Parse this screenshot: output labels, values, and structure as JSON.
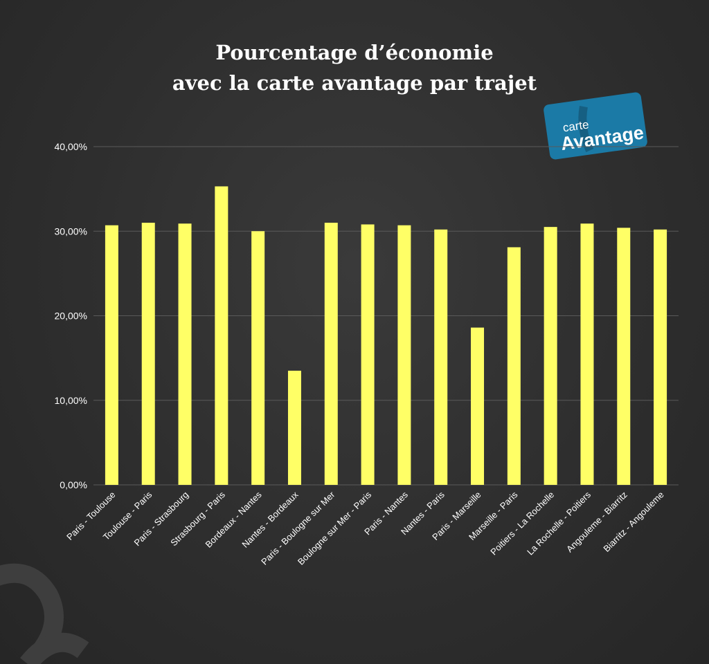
{
  "title": {
    "line1": "Pourcentage d’économie",
    "line2": "avec la carte avantage par trajet"
  },
  "logo": {
    "small_text": "carte",
    "big_text": "Avantage",
    "color": "#1b7aa6"
  },
  "colors": {
    "bar": "#ffff66",
    "text": "#ffffff",
    "grid": "#5a5a5a"
  },
  "chart_data": {
    "type": "bar",
    "title": "Pourcentage d’économie avec la carte avantage par trajet",
    "xlabel": "",
    "ylabel": "",
    "ylim": [
      0,
      40
    ],
    "yticks": [
      0,
      10,
      20,
      30,
      40
    ],
    "ytick_labels": [
      "0,00%",
      "10,00%",
      "20,00%",
      "30,00%",
      "40,00%"
    ],
    "grid": true,
    "categories": [
      "Paris - Toulouse",
      "Toulouse - Paris",
      "Paris - Strasbourg",
      "Strasbourg - Paris",
      "Bordeaux - Nantes",
      "Nantes - Bordeaux",
      "Paris - Boulogne sur Mer",
      "Boulogne sur Mer - Paris",
      "Paris - Nantes",
      "Nantes - Paris",
      "Paris - Marseille",
      "Marseille - Paris",
      "Poitiers - La Rochelle",
      "La Rochelle - Poitiers",
      "Angouleme - Biarritz",
      "Biarritz - Angouleme"
    ],
    "values": [
      30.7,
      31.0,
      30.9,
      35.3,
      30.0,
      13.5,
      31.0,
      30.8,
      30.7,
      30.2,
      18.6,
      28.1,
      30.5,
      30.9,
      30.4,
      30.2
    ]
  }
}
